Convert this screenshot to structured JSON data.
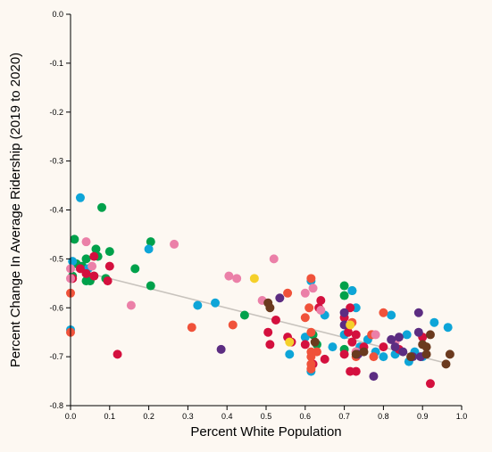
{
  "chart_data": {
    "type": "scatter",
    "xlabel": "Percent White Population",
    "ylabel": "Percent Change In Average Ridership (2019 to 2020)",
    "xlim": [
      0,
      1
    ],
    "ylim": [
      -0.8,
      0
    ],
    "x_ticks": [
      "0.0",
      "0.1",
      "0.2",
      "0.3",
      "0.4",
      "0.5",
      "0.6",
      "0.7",
      "0.8",
      "0.9",
      "1.0"
    ],
    "y_ticks": [
      "0.0",
      "-0.1",
      "-0.2",
      "-0.3",
      "-0.4",
      "-0.5",
      "-0.6",
      "-0.7",
      "-0.8"
    ],
    "grid": false,
    "trendline": {
      "color": "#c8c3bd",
      "points": [
        [
          0.0,
          -0.52
        ],
        [
          0.97,
          -0.715
        ]
      ]
    },
    "series": [
      {
        "color": "#00a14b",
        "points": [
          [
            0.005,
            -0.535
          ],
          [
            0.01,
            -0.46
          ],
          [
            0.015,
            -0.51
          ],
          [
            0.03,
            -0.515
          ],
          [
            0.04,
            -0.5
          ],
          [
            0.04,
            -0.545
          ],
          [
            0.05,
            -0.545
          ],
          [
            0.06,
            -0.535
          ],
          [
            0.065,
            -0.48
          ],
          [
            0.07,
            -0.495
          ],
          [
            0.08,
            -0.395
          ],
          [
            0.09,
            -0.54
          ],
          [
            0.1,
            -0.485
          ],
          [
            0.165,
            -0.52
          ],
          [
            0.205,
            -0.465
          ],
          [
            0.205,
            -0.555
          ],
          [
            0.445,
            -0.615
          ],
          [
            0.62,
            -0.655
          ],
          [
            0.63,
            -0.675
          ],
          [
            0.7,
            -0.555
          ],
          [
            0.7,
            -0.575
          ],
          [
            0.72,
            -0.565
          ],
          [
            0.7,
            -0.685
          ]
        ]
      },
      {
        "color": "#0ea5d8",
        "points": [
          [
            0.0,
            -0.645
          ],
          [
            0.005,
            -0.505
          ],
          [
            0.025,
            -0.375
          ],
          [
            0.045,
            -0.52
          ],
          [
            0.2,
            -0.48
          ],
          [
            0.325,
            -0.595
          ],
          [
            0.37,
            -0.59
          ],
          [
            0.56,
            -0.695
          ],
          [
            0.6,
            -0.66
          ],
          [
            0.615,
            -0.545
          ],
          [
            0.615,
            -0.73
          ],
          [
            0.65,
            -0.615
          ],
          [
            0.67,
            -0.68
          ],
          [
            0.7,
            -0.655
          ],
          [
            0.72,
            -0.565
          ],
          [
            0.73,
            -0.6
          ],
          [
            0.74,
            -0.68
          ],
          [
            0.78,
            -0.69
          ],
          [
            0.8,
            -0.7
          ],
          [
            0.82,
            -0.615
          ],
          [
            0.83,
            -0.695
          ],
          [
            0.86,
            -0.655
          ],
          [
            0.865,
            -0.71
          ],
          [
            0.88,
            -0.69
          ],
          [
            0.93,
            -0.63
          ],
          [
            0.965,
            -0.64
          ],
          [
            0.9,
            -0.7
          ],
          [
            0.76,
            -0.665
          ]
        ]
      },
      {
        "color": "#d4103e",
        "points": [
          [
            0.005,
            -0.54
          ],
          [
            0.025,
            -0.52
          ],
          [
            0.04,
            -0.53
          ],
          [
            0.06,
            -0.495
          ],
          [
            0.06,
            -0.535
          ],
          [
            0.095,
            -0.545
          ],
          [
            0.1,
            -0.515
          ],
          [
            0.12,
            -0.695
          ],
          [
            0.505,
            -0.65
          ],
          [
            0.51,
            -0.675
          ],
          [
            0.525,
            -0.625
          ],
          [
            0.555,
            -0.66
          ],
          [
            0.565,
            -0.67
          ],
          [
            0.6,
            -0.675
          ],
          [
            0.62,
            -0.715
          ],
          [
            0.635,
            -0.6
          ],
          [
            0.64,
            -0.585
          ],
          [
            0.65,
            -0.705
          ],
          [
            0.7,
            -0.62
          ],
          [
            0.7,
            -0.695
          ],
          [
            0.71,
            -0.65
          ],
          [
            0.715,
            -0.6
          ],
          [
            0.715,
            -0.73
          ],
          [
            0.72,
            -0.67
          ],
          [
            0.73,
            -0.73
          ],
          [
            0.75,
            -0.68
          ],
          [
            0.77,
            -0.655
          ],
          [
            0.8,
            -0.68
          ],
          [
            0.84,
            -0.685
          ],
          [
            0.9,
            -0.66
          ],
          [
            0.92,
            -0.755
          ],
          [
            0.73,
            -0.655
          ]
        ]
      },
      {
        "color": "#f0523a",
        "points": [
          [
            0.0,
            -0.57
          ],
          [
            0.0,
            -0.65
          ],
          [
            0.31,
            -0.64
          ],
          [
            0.415,
            -0.635
          ],
          [
            0.555,
            -0.57
          ],
          [
            0.6,
            -0.62
          ],
          [
            0.61,
            -0.6
          ],
          [
            0.615,
            -0.54
          ],
          [
            0.615,
            -0.65
          ],
          [
            0.615,
            -0.69
          ],
          [
            0.615,
            -0.7
          ],
          [
            0.615,
            -0.715
          ],
          [
            0.615,
            -0.725
          ],
          [
            0.63,
            -0.69
          ],
          [
            0.73,
            -0.7
          ],
          [
            0.73,
            -0.69
          ],
          [
            0.77,
            -0.655
          ],
          [
            0.8,
            -0.61
          ],
          [
            0.72,
            -0.63
          ],
          [
            0.775,
            -0.7
          ]
        ]
      },
      {
        "color": "#eb80a8",
        "points": [
          [
            0.0,
            -0.52
          ],
          [
            0.0,
            -0.54
          ],
          [
            0.04,
            -0.465
          ],
          [
            0.055,
            -0.515
          ],
          [
            0.155,
            -0.595
          ],
          [
            0.265,
            -0.47
          ],
          [
            0.405,
            -0.535
          ],
          [
            0.425,
            -0.54
          ],
          [
            0.49,
            -0.585
          ],
          [
            0.52,
            -0.5
          ],
          [
            0.6,
            -0.57
          ],
          [
            0.62,
            -0.56
          ],
          [
            0.64,
            -0.605
          ],
          [
            0.73,
            -0.69
          ],
          [
            0.78,
            -0.655
          ],
          [
            0.83,
            -0.67
          ]
        ]
      },
      {
        "color": "#5c2d82",
        "points": [
          [
            0.385,
            -0.685
          ],
          [
            0.535,
            -0.58
          ],
          [
            0.7,
            -0.61
          ],
          [
            0.7,
            -0.635
          ],
          [
            0.735,
            -0.695
          ],
          [
            0.82,
            -0.665
          ],
          [
            0.83,
            -0.68
          ],
          [
            0.84,
            -0.66
          ],
          [
            0.85,
            -0.69
          ],
          [
            0.89,
            -0.61
          ],
          [
            0.89,
            -0.65
          ],
          [
            0.895,
            -0.7
          ],
          [
            0.775,
            -0.74
          ],
          [
            0.875,
            -0.7
          ]
        ]
      },
      {
        "color": "#6b3a1e",
        "points": [
          [
            0.505,
            -0.59
          ],
          [
            0.51,
            -0.6
          ],
          [
            0.625,
            -0.67
          ],
          [
            0.87,
            -0.7
          ],
          [
            0.9,
            -0.675
          ],
          [
            0.91,
            -0.695
          ],
          [
            0.91,
            -0.68
          ],
          [
            0.92,
            -0.655
          ],
          [
            0.96,
            -0.715
          ],
          [
            0.97,
            -0.695
          ],
          [
            0.75,
            -0.69
          ],
          [
            0.73,
            -0.695
          ]
        ]
      },
      {
        "color": "#f5d02a",
        "points": [
          [
            0.47,
            -0.54
          ],
          [
            0.56,
            -0.67
          ],
          [
            0.715,
            -0.635
          ]
        ]
      }
    ]
  }
}
